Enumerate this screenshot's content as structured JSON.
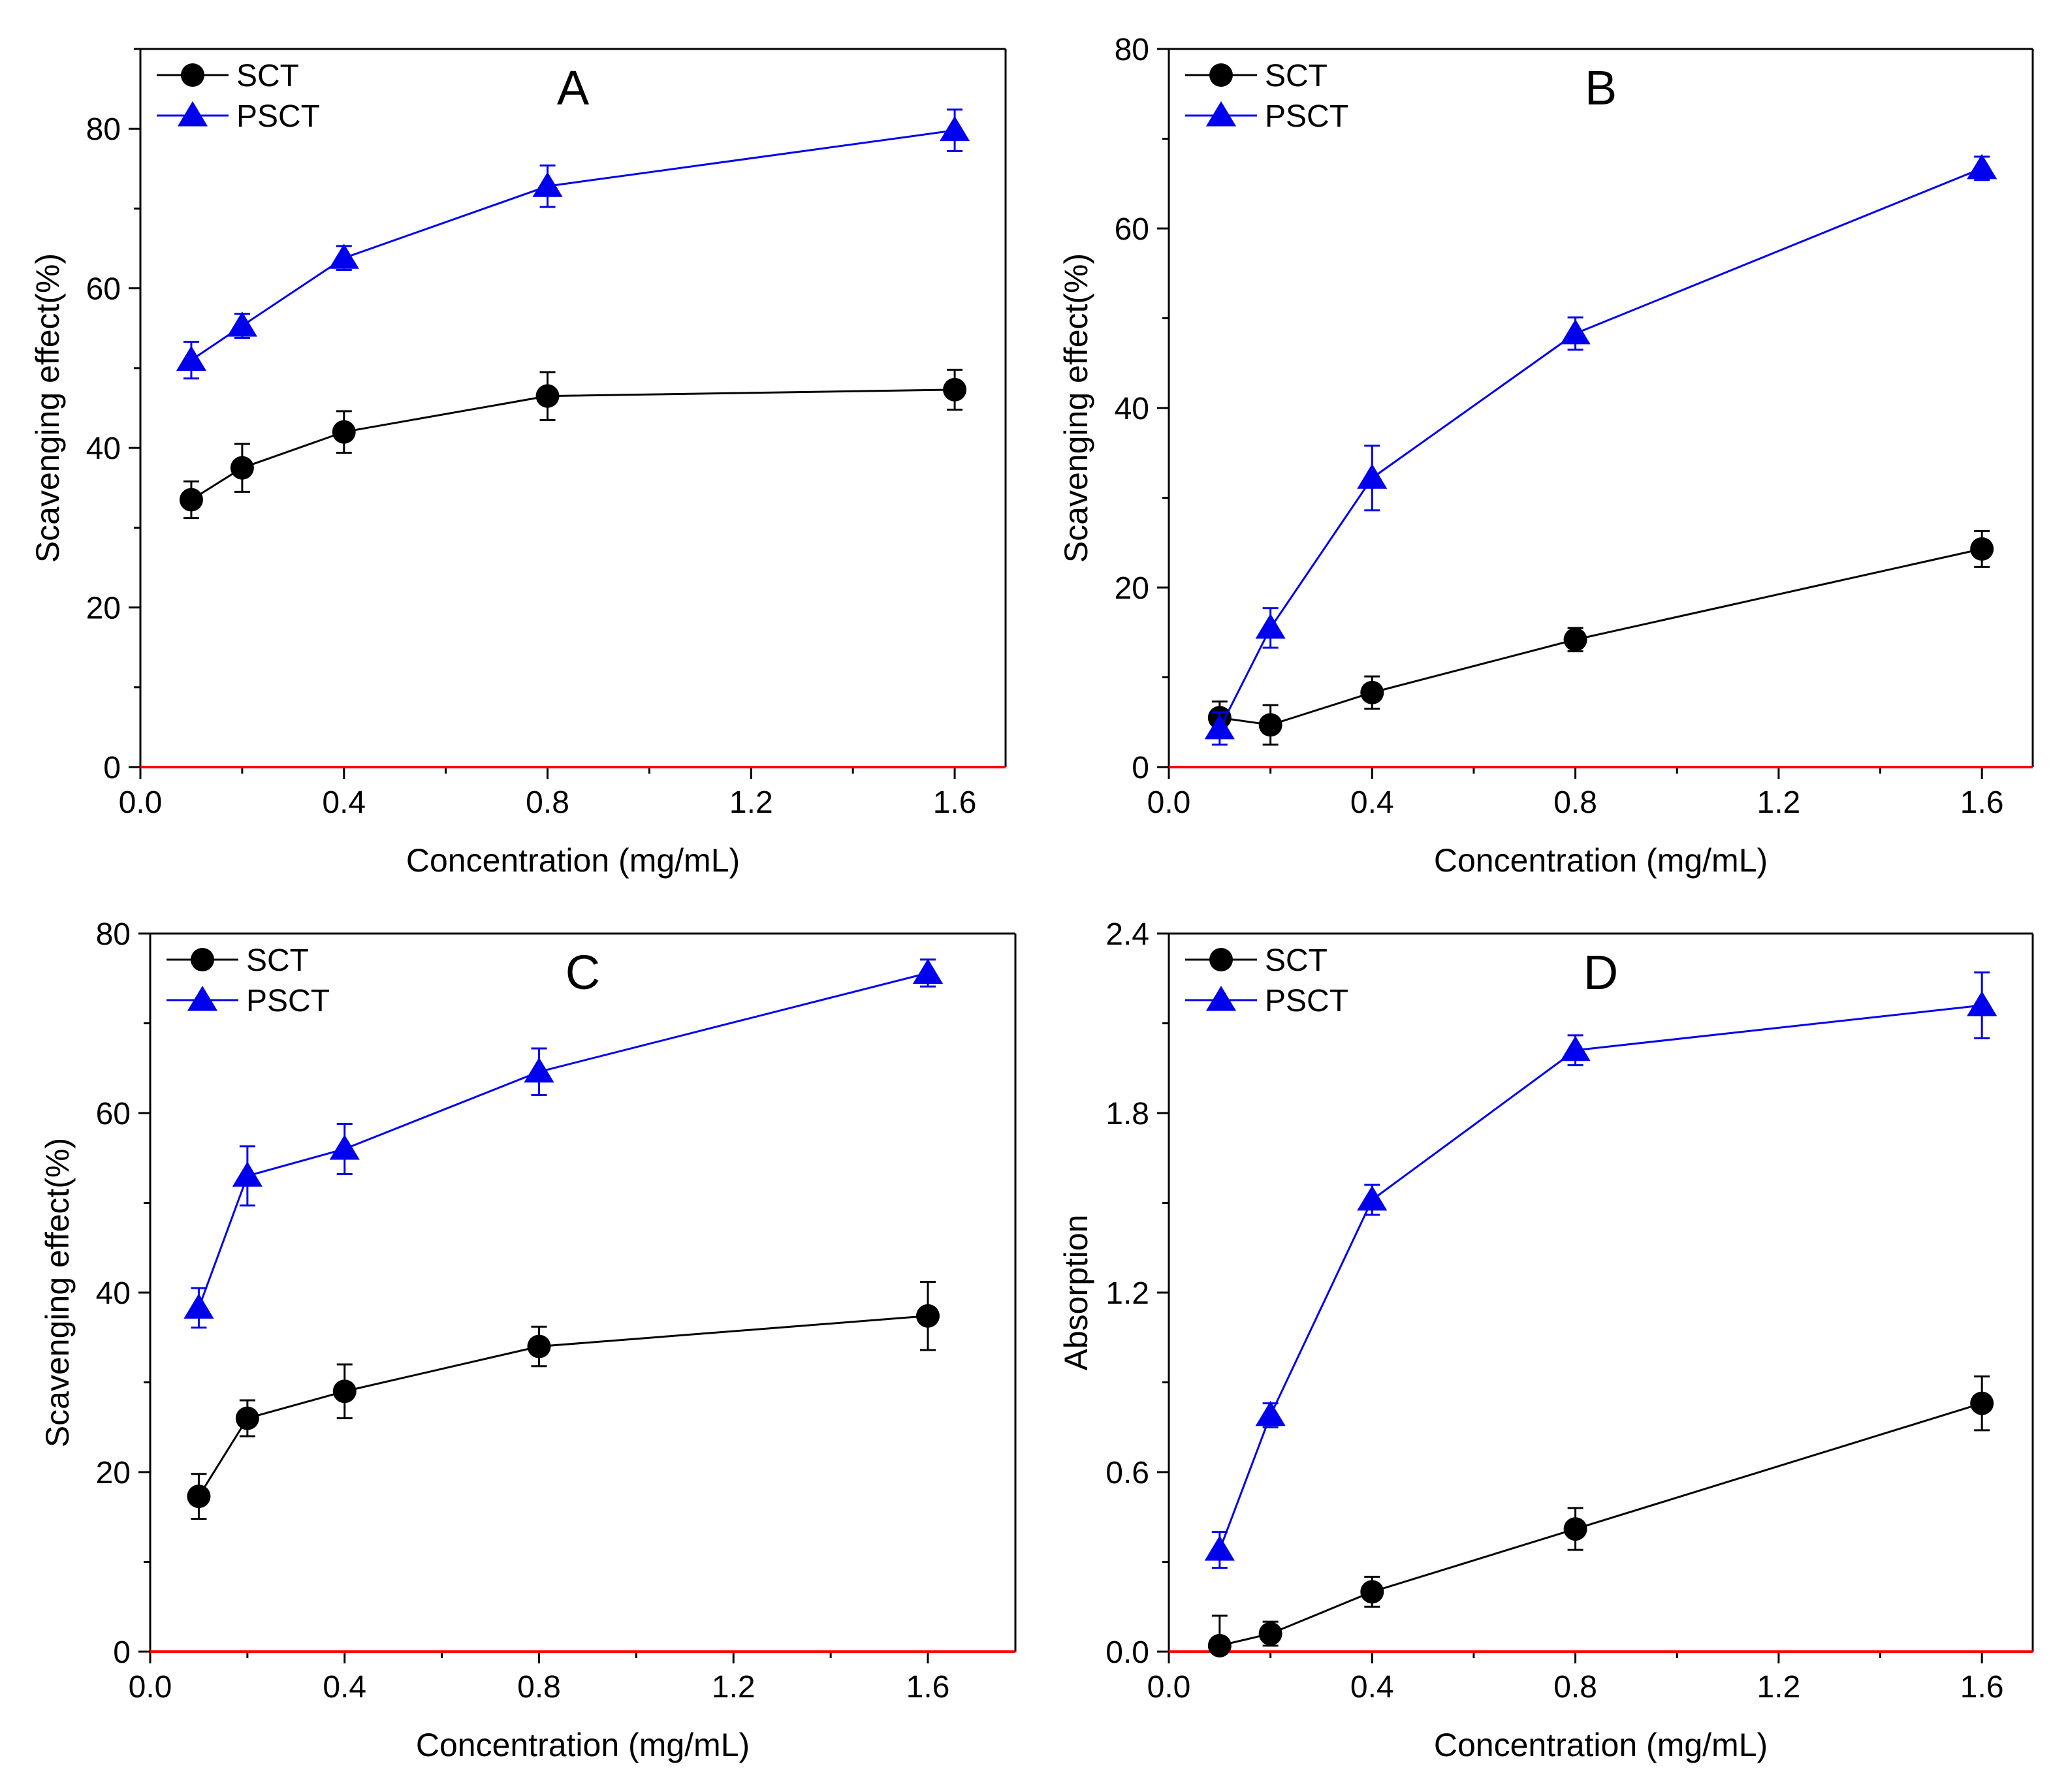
{
  "colors": {
    "sct": "#000000",
    "psct": "#0000ee",
    "baseline": "#ff0000",
    "axis": "#000000"
  },
  "chart_data": [
    {
      "type": "line",
      "panel": "A",
      "xlabel": "Concentration (mg/mL)",
      "ylabel": "Scavenging effect(%)",
      "xlim": [
        0.0,
        1.7
      ],
      "ylim": [
        0,
        90
      ],
      "x_ticks": [
        "0.0",
        "0.4",
        "0.8",
        "1.2",
        "1.6"
      ],
      "y_ticks": [
        "0",
        "20",
        "40",
        "60",
        "80"
      ],
      "x_tick_values": [
        0.0,
        0.4,
        0.8,
        1.2,
        1.6
      ],
      "y_tick_values": [
        0,
        20,
        40,
        60,
        80
      ],
      "legend_position": "top-left",
      "series": [
        {
          "name": "SCT",
          "marker": "circle",
          "x": [
            0.1,
            0.2,
            0.4,
            0.8,
            1.6
          ],
          "y": [
            33.5,
            37.5,
            42.0,
            46.5,
            47.3
          ],
          "err": [
            2.3,
            3.0,
            2.6,
            3.0,
            2.5
          ]
        },
        {
          "name": "PSCT",
          "marker": "triangle",
          "x": [
            0.1,
            0.2,
            0.4,
            0.8,
            1.6
          ],
          "y": [
            51.0,
            55.3,
            63.8,
            72.8,
            79.8
          ],
          "err": [
            2.3,
            1.5,
            1.5,
            2.6,
            2.6
          ]
        }
      ]
    },
    {
      "type": "line",
      "panel": "B",
      "xlabel": "Concentration (mg/mL)",
      "ylabel": "Scavenging effect(%)",
      "xlim": [
        0.0,
        1.7
      ],
      "ylim": [
        0,
        80
      ],
      "x_ticks": [
        "0.0",
        "0.4",
        "0.8",
        "1.2",
        "1.6"
      ],
      "y_ticks": [
        "0",
        "20",
        "40",
        "60",
        "80"
      ],
      "x_tick_values": [
        0.0,
        0.4,
        0.8,
        1.2,
        1.6
      ],
      "y_tick_values": [
        0,
        20,
        40,
        60,
        80
      ],
      "legend_position": "top-left",
      "series": [
        {
          "name": "SCT",
          "marker": "circle",
          "x": [
            0.1,
            0.2,
            0.4,
            0.8,
            1.6
          ],
          "y": [
            5.5,
            4.7,
            8.3,
            14.2,
            24.3
          ],
          "err": [
            1.8,
            2.2,
            1.8,
            1.3,
            2.0
          ]
        },
        {
          "name": "PSCT",
          "marker": "triangle",
          "x": [
            0.1,
            0.2,
            0.4,
            0.8,
            1.6
          ],
          "y": [
            4.3,
            15.5,
            32.2,
            48.3,
            66.7
          ],
          "err": [
            1.8,
            2.2,
            3.6,
            1.8,
            1.3
          ]
        }
      ]
    },
    {
      "type": "line",
      "panel": "C",
      "xlabel": "Concentration (mg/mL)",
      "ylabel": "Scavenging effect(%)",
      "xlim": [
        0.0,
        1.78
      ],
      "ylim": [
        0,
        80
      ],
      "x_ticks": [
        "0.0",
        "0.4",
        "0.8",
        "1.2",
        "1.6"
      ],
      "y_ticks": [
        "0",
        "20",
        "40",
        "60",
        "80"
      ],
      "x_tick_values": [
        0.0,
        0.4,
        0.8,
        1.2,
        1.6
      ],
      "y_tick_values": [
        0,
        20,
        40,
        60,
        80
      ],
      "legend_position": "top-left",
      "series": [
        {
          "name": "SCT",
          "marker": "circle",
          "x": [
            0.1,
            0.2,
            0.4,
            0.8,
            1.6
          ],
          "y": [
            17.3,
            26.0,
            29.0,
            34.0,
            37.4
          ],
          "err": [
            2.5,
            2.0,
            3.0,
            2.2,
            3.8
          ]
        },
        {
          "name": "PSCT",
          "marker": "triangle",
          "x": [
            0.1,
            0.2,
            0.4,
            0.8,
            1.6
          ],
          "y": [
            38.3,
            53.0,
            56.0,
            64.6,
            75.6
          ],
          "err": [
            2.2,
            3.3,
            2.8,
            2.6,
            1.5
          ]
        }
      ]
    },
    {
      "type": "line",
      "panel": "D",
      "xlabel": "Concentration (mg/mL)",
      "ylabel": "Absorption",
      "xlim": [
        0.0,
        1.7
      ],
      "ylim": [
        0.0,
        2.4
      ],
      "x_ticks": [
        "0.0",
        "0.4",
        "0.8",
        "1.2",
        "1.6"
      ],
      "y_ticks": [
        "0.0",
        "0.6",
        "1.2",
        "1.8",
        "2.4"
      ],
      "x_tick_values": [
        0.0,
        0.4,
        0.8,
        1.2,
        1.6
      ],
      "y_tick_values": [
        0.0,
        0.6,
        1.2,
        1.8,
        2.4
      ],
      "legend_position": "top-left",
      "series": [
        {
          "name": "SCT",
          "marker": "circle",
          "x": [
            0.1,
            0.2,
            0.4,
            0.8,
            1.6
          ],
          "y": [
            0.02,
            0.06,
            0.2,
            0.41,
            0.83
          ],
          "err": [
            0.1,
            0.04,
            0.05,
            0.07,
            0.09
          ]
        },
        {
          "name": "PSCT",
          "marker": "triangle",
          "x": [
            0.1,
            0.2,
            0.4,
            0.8,
            1.6
          ],
          "y": [
            0.34,
            0.79,
            1.51,
            2.01,
            2.16
          ],
          "err": [
            0.06,
            0.04,
            0.05,
            0.05,
            0.11
          ]
        }
      ]
    }
  ]
}
